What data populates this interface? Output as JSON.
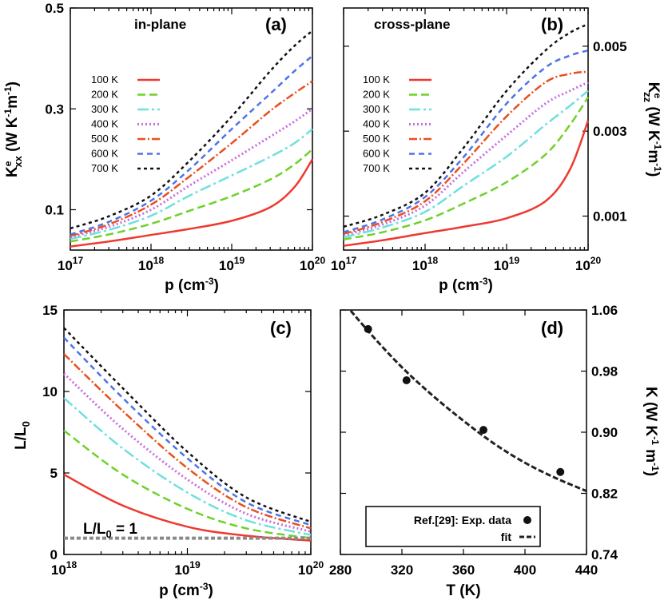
{
  "colors": {
    "100 K": "#ee3a30",
    "200 K": "#6fd12b",
    "300 K": "#6ee0de",
    "400 K": "#c96be0",
    "500 K": "#e8501e",
    "600 K": "#4c74e8",
    "700 K": "#111111",
    "reference": "#8a8a8a",
    "fit": "#222222"
  },
  "chart_data": [
    {
      "panel": "(a)",
      "type": "line",
      "title": "in-plane",
      "xscale": "log",
      "xlim": [
        1e+17,
        1e+20
      ],
      "ylim": [
        0.02,
        0.5
      ],
      "xticks": [
        "10^17",
        "10^18",
        "10^19",
        "10^20"
      ],
      "yticks": [
        "0.1",
        "0.3",
        "0.5"
      ],
      "xlabel": {
        "base": "p (cm",
        "sup": "-3",
        "end": ")"
      },
      "ylabel": {
        "base": "K",
        "sup": "e",
        "sub": "xx",
        "rest": " (W K",
        "sup2": "-1",
        "mid": "m",
        "sup3": "-1",
        "end": ")"
      },
      "legend": {
        "position": "upper-left",
        "entries": [
          "100 K",
          "200 K",
          "300 K",
          "400 K",
          "500 K",
          "600 K",
          "700 K"
        ]
      },
      "x": [
        1e+17,
        3e+17,
        1e+18,
        3e+18,
        1e+19,
        3e+19,
        6e+19,
        1e+20
      ],
      "series": [
        {
          "name": "100 K",
          "values": [
            0.027,
            0.037,
            0.05,
            0.062,
            0.078,
            0.105,
            0.145,
            0.2
          ]
        },
        {
          "name": "200 K",
          "values": [
            0.037,
            0.051,
            0.072,
            0.098,
            0.127,
            0.16,
            0.19,
            0.22
          ]
        },
        {
          "name": "300 K",
          "values": [
            0.042,
            0.06,
            0.088,
            0.128,
            0.168,
            0.205,
            0.232,
            0.26
          ]
        },
        {
          "name": "400 K",
          "values": [
            0.046,
            0.066,
            0.1,
            0.148,
            0.198,
            0.245,
            0.275,
            0.3
          ]
        },
        {
          "name": "500 K",
          "values": [
            0.048,
            0.071,
            0.11,
            0.166,
            0.232,
            0.296,
            0.331,
            0.355
          ]
        },
        {
          "name": "600 K",
          "values": [
            0.051,
            0.076,
            0.118,
            0.18,
            0.26,
            0.33,
            0.375,
            0.405
          ]
        },
        {
          "name": "700 K",
          "values": [
            0.063,
            0.087,
            0.128,
            0.197,
            0.285,
            0.375,
            0.425,
            0.455
          ]
        }
      ]
    },
    {
      "panel": "(b)",
      "type": "line",
      "title": "cross-plane",
      "xscale": "log",
      "xlim": [
        1e+17,
        1e+20
      ],
      "ylim": [
        0.0002,
        0.0059
      ],
      "xticks": [
        "10^17",
        "10^18",
        "10^19",
        "10^20"
      ],
      "yticks": [
        "0.001",
        "0.003",
        "0.005"
      ],
      "xlabel": {
        "base": "p (cm",
        "sup": "-3",
        "end": ")"
      },
      "ylabel": {
        "base": "K",
        "sup": "e",
        "sub": "zz",
        "rest": " (W K",
        "sup2": "-1",
        "mid": "m",
        "sup3": "-1",
        "end": ")"
      },
      "legend": {
        "position": "upper-left",
        "entries": [
          "100 K",
          "200 K",
          "300 K",
          "400 K",
          "500 K",
          "600 K",
          "700 K"
        ]
      },
      "x": [
        1e+17,
        3e+17,
        1e+18,
        3e+18,
        1e+19,
        3e+19,
        6e+19,
        1e+20
      ],
      "series": [
        {
          "name": "100 K",
          "values": [
            0.0003,
            0.00043,
            0.0006,
            0.00075,
            0.00095,
            0.00135,
            0.0021,
            0.00325
          ]
        },
        {
          "name": "200 K",
          "values": [
            0.00045,
            0.00062,
            0.0009,
            0.0013,
            0.0018,
            0.00245,
            0.00315,
            0.0038
          ]
        },
        {
          "name": "300 K",
          "values": [
            0.0005,
            0.00073,
            0.0011,
            0.00172,
            0.0024,
            0.00315,
            0.0036,
            0.00395
          ]
        },
        {
          "name": "400 K",
          "values": [
            0.00055,
            0.0008,
            0.00125,
            0.00205,
            0.0029,
            0.00365,
            0.00395,
            0.00415
          ]
        },
        {
          "name": "500 K",
          "values": [
            0.00058,
            0.00086,
            0.00135,
            0.00225,
            0.00335,
            0.00415,
            0.00435,
            0.0044
          ]
        },
        {
          "name": "600 K",
          "values": [
            0.00062,
            0.00092,
            0.00145,
            0.0024,
            0.00365,
            0.0045,
            0.00478,
            0.0049
          ]
        },
        {
          "name": "700 K",
          "values": [
            0.00075,
            0.00103,
            0.00155,
            0.00262,
            0.00395,
            0.0049,
            0.00532,
            0.00552
          ]
        }
      ]
    },
    {
      "panel": "(c)",
      "type": "line",
      "xscale": "log",
      "xlim": [
        1e+18,
        1e+20
      ],
      "ylim": [
        0,
        15
      ],
      "xticks": [
        "10^18",
        "10^19",
        "10^20"
      ],
      "yticks": [
        "0",
        "5",
        "10",
        "15"
      ],
      "xlabel": {
        "base": "p (cm",
        "sup": "-3",
        "end": ")"
      },
      "ylabel": {
        "base": "L/L",
        "sub": "0"
      },
      "annotation": {
        "base": "L/L",
        "sub": "0",
        "end": " = 1"
      },
      "x": [
        1e+18,
        3e+18,
        1e+19,
        3e+19,
        1e+20
      ],
      "series": [
        {
          "name": "100 K",
          "values": [
            4.9,
            3.0,
            1.7,
            1.15,
            0.85
          ]
        },
        {
          "name": "200 K",
          "values": [
            7.6,
            4.9,
            2.8,
            1.6,
            1.0
          ]
        },
        {
          "name": "300 K",
          "values": [
            9.6,
            6.5,
            3.8,
            2.1,
            1.2
          ]
        },
        {
          "name": "400 K",
          "values": [
            11.1,
            7.7,
            4.6,
            2.5,
            1.4
          ]
        },
        {
          "name": "500 K",
          "values": [
            12.3,
            8.8,
            5.3,
            2.9,
            1.6
          ]
        },
        {
          "name": "600 K",
          "values": [
            13.3,
            9.6,
            5.9,
            3.2,
            1.8
          ]
        },
        {
          "name": "700 K",
          "values": [
            13.9,
            10.2,
            6.3,
            3.5,
            2.0
          ]
        },
        {
          "name": "reference",
          "values": [
            1,
            1,
            1,
            1,
            1
          ]
        }
      ]
    },
    {
      "panel": "(d)",
      "type": "scatter",
      "xlim": [
        280,
        440
      ],
      "ylim": [
        0.74,
        1.06
      ],
      "xticks": [
        "280",
        "320",
        "360",
        "400",
        "440"
      ],
      "yticks": [
        "0.74",
        "0.82",
        "0.90",
        "0.98",
        "1.06"
      ],
      "xlabel": {
        "base": "T (K)"
      },
      "ylabel": {
        "base": "K (W K",
        "sup": "-1",
        "mid": " m",
        "sup2": "-1",
        "end": ")"
      },
      "legend": {
        "position": "bottom-left",
        "entries": [
          "Ref.[29]: Exp. data",
          "fit"
        ]
      },
      "exp_data": {
        "name": "Ref.[29]: Exp. data",
        "x": [
          298,
          323,
          373,
          423
        ],
        "y": [
          1.035,
          0.968,
          0.903,
          0.848
        ]
      },
      "fit": {
        "name": "fit",
        "x": [
          280,
          300,
          320,
          340,
          360,
          380,
          400,
          420,
          440
        ],
        "y": [
          1.075,
          1.028,
          0.985,
          0.948,
          0.915,
          0.885,
          0.86,
          0.84,
          0.823
        ]
      }
    }
  ]
}
